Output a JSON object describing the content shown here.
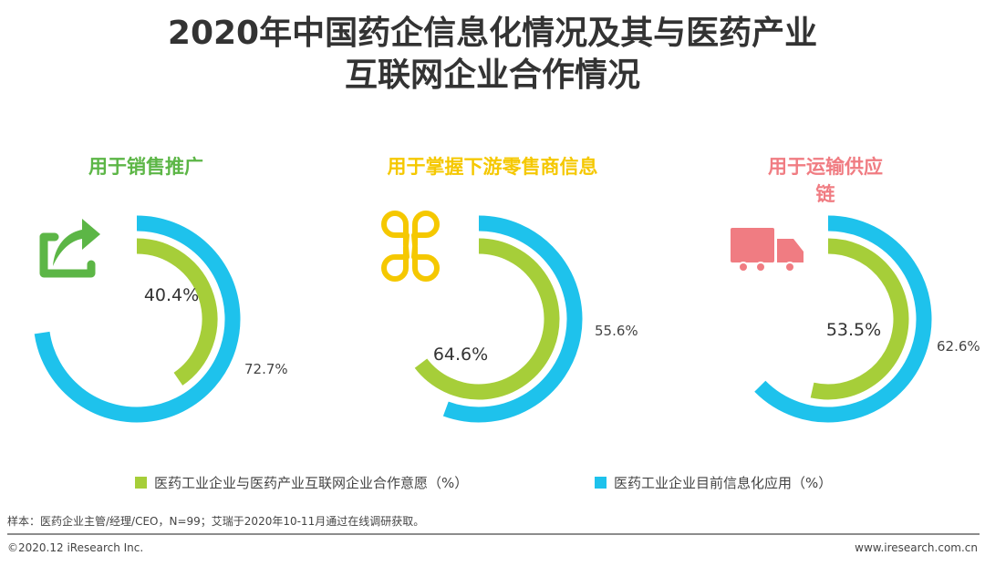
{
  "title": {
    "line1": "2020年中国药企信息化情况及其与医药产业",
    "line2": "互联网企业合作情况"
  },
  "colors": {
    "willingness": "#a6ce39",
    "application": "#1ec2ec",
    "panel_title_1": "#5cb646",
    "panel_title_2": "#f5c800",
    "panel_title_3": "#f07c82"
  },
  "chart_data": {
    "type": "donut",
    "series": [
      {
        "name": "医药工业企业与医药产业互联网企业合作意愿（%）",
        "color": "#a6ce39"
      },
      {
        "name": "医药工业企业目前信息化应用（%）",
        "color": "#1ec2ec"
      }
    ],
    "panels": [
      {
        "title": "用于销售推广",
        "icon": "share-arrow-icon",
        "willingness": 40.4,
        "application": 72.7,
        "willingness_label": "40.4%",
        "application_label": "72.7%"
      },
      {
        "title_line1": "用于掌握下游零售商信息",
        "icon": "four-petal-grid-icon",
        "willingness": 64.6,
        "application": 55.6,
        "willingness_label": "64.6%",
        "application_label": "55.6%"
      },
      {
        "title_line1": "用于运输供应",
        "title_line2": "链",
        "icon": "truck-icon",
        "willingness": 53.5,
        "application": 62.6,
        "willingness_label": "53.5%",
        "application_label": "62.6%"
      }
    ]
  },
  "legend": {
    "willingness": "医药工业企业与医药产业互联网企业合作意愿（%）",
    "application": "医药工业企业目前信息化应用（%）"
  },
  "footnote": "样本：医药企业主管/经理/CEO，N=99；艾瑞于2020年10-11月通过在线调研获取。",
  "footer": {
    "copyright": "©2020.12 iResearch Inc.",
    "website": "www.iresearch.com.cn"
  }
}
